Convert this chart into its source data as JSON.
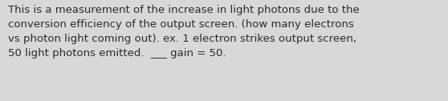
{
  "text": "This is a measurement of the increase in light photons due to the\nconversion efficiency of the output screen. (how many electrons\nvs photon light coming out). ex. 1 electron strikes output screen,\n50 light photons emitted.  ___ gain = 50.",
  "background_color": "#d8d8d8",
  "text_color": "#2a2a2a",
  "font_size": 9.5,
  "fig_width": 5.58,
  "fig_height": 1.26,
  "dpi": 100
}
